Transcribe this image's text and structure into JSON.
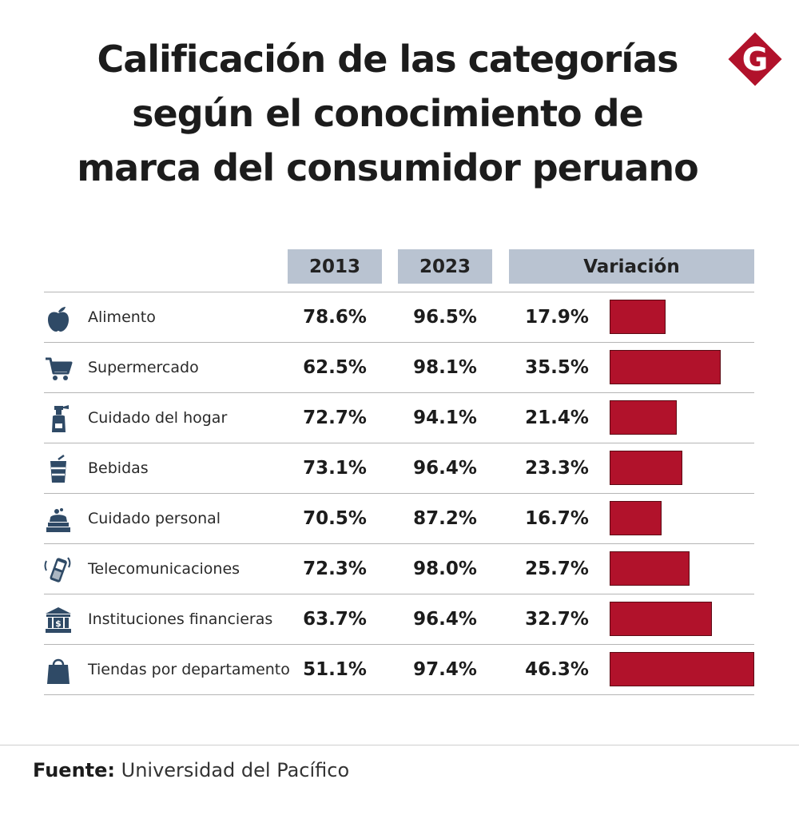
{
  "title_lines": [
    "Calificación de las categorías",
    "según el conocimiento de",
    "marca del consumidor peruano"
  ],
  "logo_letter": "G",
  "colors": {
    "bar": "#b1122b",
    "header_bg": "#b9c3d1",
    "icon": "#2f4a66",
    "logo": "#b1122b"
  },
  "headers": {
    "col_2013": "2013",
    "col_2023": "2023",
    "col_variation": "Variación"
  },
  "source": {
    "label": "Fuente:",
    "text": "Universidad del Pacífico"
  },
  "chart_data": {
    "type": "table",
    "title": "Calificación de las categorías según el conocimiento de marca del consumidor peruano",
    "columns": [
      "2013",
      "2023",
      "Variación"
    ],
    "bar_max": 46.3,
    "rows": [
      {
        "icon": "apple-icon",
        "category": "Alimento",
        "v2013": "78.6%",
        "v2023": "96.5%",
        "variation": "17.9%",
        "var_value": 17.9
      },
      {
        "icon": "shopping-cart-icon",
        "category": "Supermercado",
        "v2013": "62.5%",
        "v2023": "98.1%",
        "variation": "35.5%",
        "var_value": 35.5
      },
      {
        "icon": "spray-bottle-icon",
        "category": "Cuidado del hogar",
        "v2013": "72.7%",
        "v2023": "94.1%",
        "variation": "21.4%",
        "var_value": 21.4
      },
      {
        "icon": "drink-cup-icon",
        "category": "Bebidas",
        "v2013": "73.1%",
        "v2023": "96.4%",
        "variation": "23.3%",
        "var_value": 23.3
      },
      {
        "icon": "soap-icon",
        "category": "Cuidado personal",
        "v2013": "70.5%",
        "v2023": "87.2%",
        "variation": "16.7%",
        "var_value": 16.7
      },
      {
        "icon": "mobile-phone-icon",
        "category": "Telecomunicaciones",
        "v2013": "72.3%",
        "v2023": "98.0%",
        "variation": "25.7%",
        "var_value": 25.7
      },
      {
        "icon": "bank-icon",
        "category": "Instituciones financieras",
        "v2013": "63.7%",
        "v2023": "96.4%",
        "variation": "32.7%",
        "var_value": 32.7
      },
      {
        "icon": "shopping-bag-icon",
        "category": "Tiendas por departamento",
        "v2013": "51.1%",
        "v2023": "97.4%",
        "variation": "46.3%",
        "var_value": 46.3
      }
    ]
  }
}
